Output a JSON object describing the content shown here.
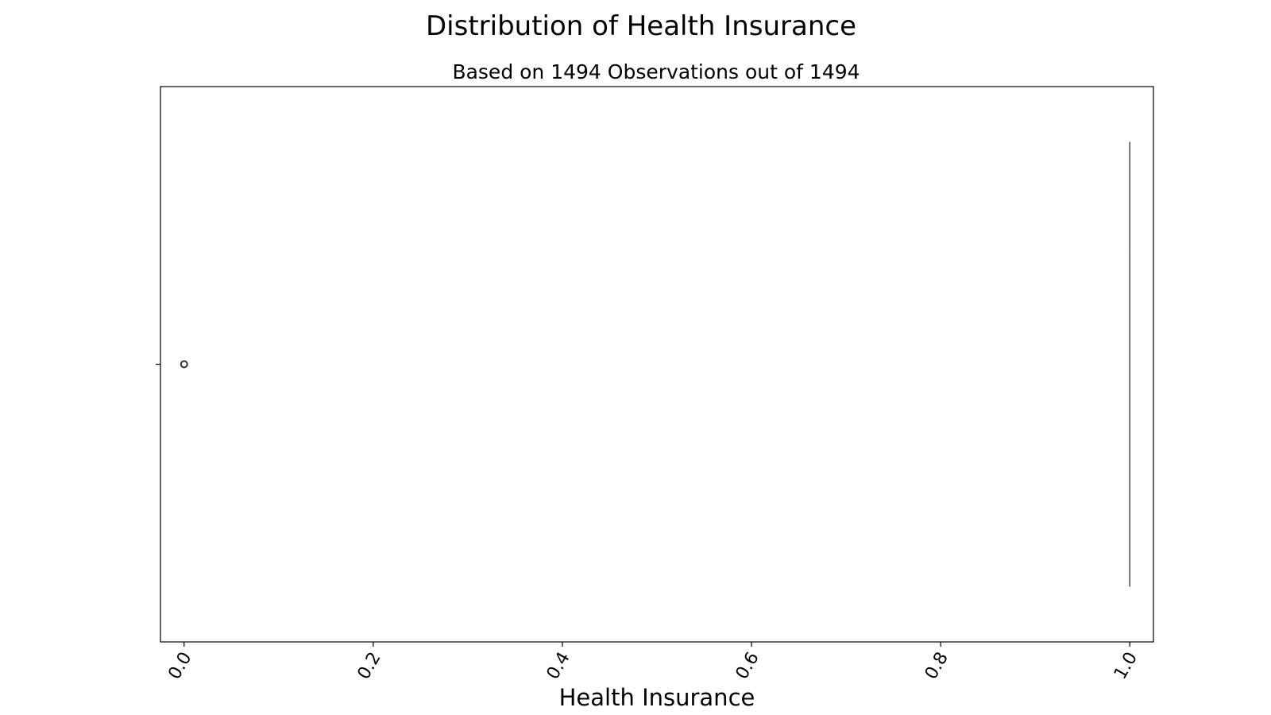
{
  "chart_data": {
    "type": "box",
    "title": "Distribution of Health Insurance",
    "subtitle": "Based on 1494 Observations out of 1494",
    "xlabel": "Health Insurance",
    "ylabel": "",
    "orientation": "horizontal",
    "xlim": [
      -0.025,
      1.025
    ],
    "xticks": [
      0.0,
      0.2,
      0.4,
      0.6,
      0.8,
      1.0
    ],
    "xtick_labels": [
      "0.0",
      "0.2",
      "0.4",
      "0.6",
      "0.8",
      "1.0"
    ],
    "xtick_rotation": 60,
    "box": {
      "min": 1.0,
      "q1": 1.0,
      "median": 1.0,
      "q3": 1.0,
      "max": 1.0,
      "outliers": [
        0.0
      ]
    },
    "n_observations": 1494,
    "n_total": 1494,
    "grid": false,
    "colors": {
      "box": "#4d4d4d",
      "outlier_edge": "#333333",
      "axes": "#000000"
    }
  }
}
